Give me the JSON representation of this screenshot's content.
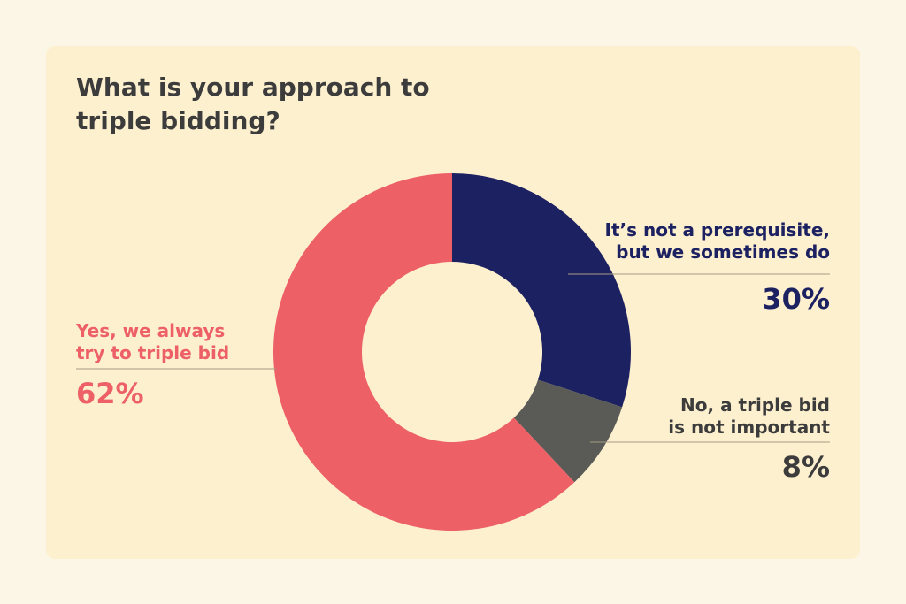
{
  "chart_data": {
    "type": "pie",
    "donut": true,
    "title": "What is your approach to triple bidding?",
    "slices": [
      {
        "label": "It’s not a prerequisite, but we sometimes do",
        "value": 30,
        "display": "30%",
        "color": "#1c2161"
      },
      {
        "label": "No, a triple bid is not important",
        "value": 8,
        "display": "8%",
        "color": "#5a5a56"
      },
      {
        "label": "Yes, we always try to triple bid",
        "value": 62,
        "display": "62%",
        "color": "#ec6066"
      }
    ],
    "legend": "direct labels"
  },
  "colors": {
    "background": "#fcf6e6",
    "card": "#fdf0cf",
    "title": "#3c3c3c",
    "leader_line": "#a89c86"
  }
}
